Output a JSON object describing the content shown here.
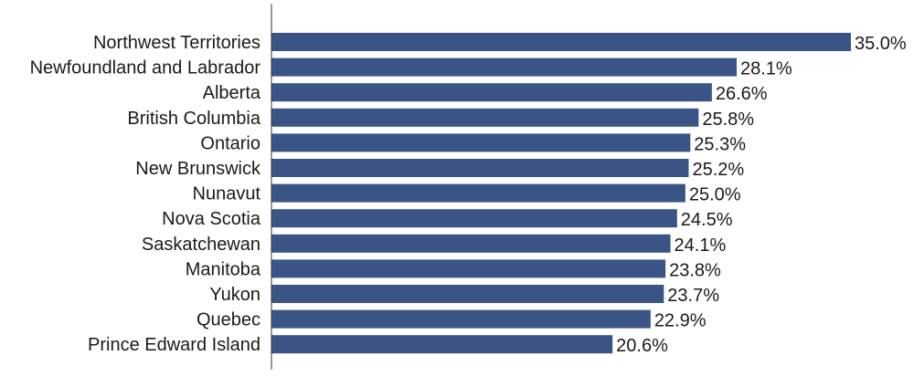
{
  "chart_data": {
    "type": "bar",
    "orientation": "horizontal",
    "categories": [
      "Northwest Territories",
      "Newfoundland and Labrador",
      "Alberta",
      "British Columbia",
      "Ontario",
      "New Brunswick",
      "Nunavut",
      "Nova Scotia",
      "Saskatchewan",
      "Manitoba",
      "Yukon",
      "Quebec",
      "Prince Edward Island"
    ],
    "values": [
      35.0,
      28.1,
      26.6,
      25.8,
      25.3,
      25.2,
      25.0,
      24.5,
      24.1,
      23.8,
      23.7,
      22.9,
      20.6
    ],
    "value_labels": [
      "35.0%",
      "28.1%",
      "26.6%",
      "25.8%",
      "25.3%",
      "25.2%",
      "25.0%",
      "24.5%",
      "24.1%",
      "23.8%",
      "23.7%",
      "22.9%",
      "20.6%"
    ],
    "title": "",
    "xlabel": "",
    "ylabel": "",
    "xlim": [
      0,
      35.0
    ],
    "grid": false,
    "legend": "none",
    "bar_color": "#3a5585"
  }
}
